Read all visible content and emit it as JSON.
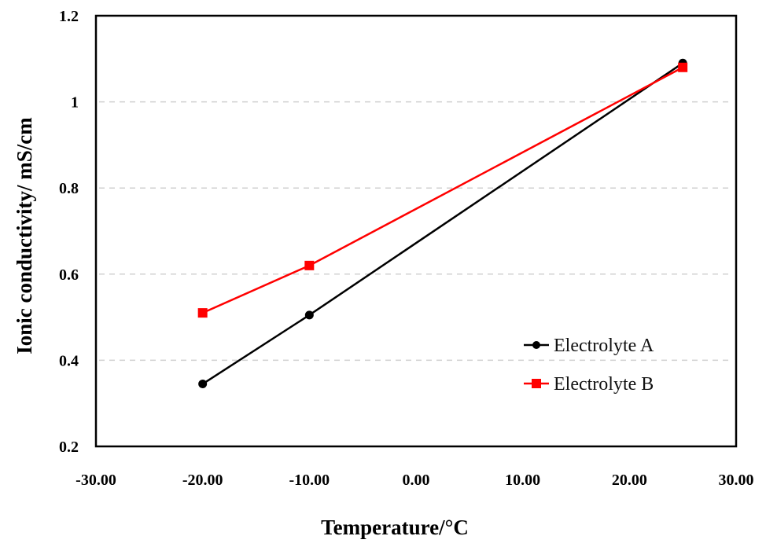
{
  "chart_data": {
    "type": "line",
    "title": "",
    "xlabel": "Temperature/°C",
    "ylabel": "Ionic conductivity/ mS/cm",
    "xlim": [
      -30,
      30
    ],
    "ylim": [
      0.2,
      1.2
    ],
    "xticks": [
      "-30.00",
      "-20.00",
      "-10.00",
      "0.00",
      "10.00",
      "20.00",
      "30.00"
    ],
    "yticks": [
      "0.2",
      "0.4",
      "0.6",
      "0.8",
      "1",
      "1.2"
    ],
    "grid": "horizontal dashed",
    "legend_position": "bottom-right",
    "series": [
      {
        "name": "Electrolyte A",
        "color": "#000000",
        "marker": "circle",
        "x": [
          -20,
          -10,
          25
        ],
        "y": [
          0.345,
          0.505,
          1.09
        ]
      },
      {
        "name": "Electrolyte B",
        "color": "#ff0000",
        "marker": "square",
        "x": [
          -20,
          -10,
          25
        ],
        "y": [
          0.51,
          0.62,
          1.08
        ]
      }
    ]
  }
}
